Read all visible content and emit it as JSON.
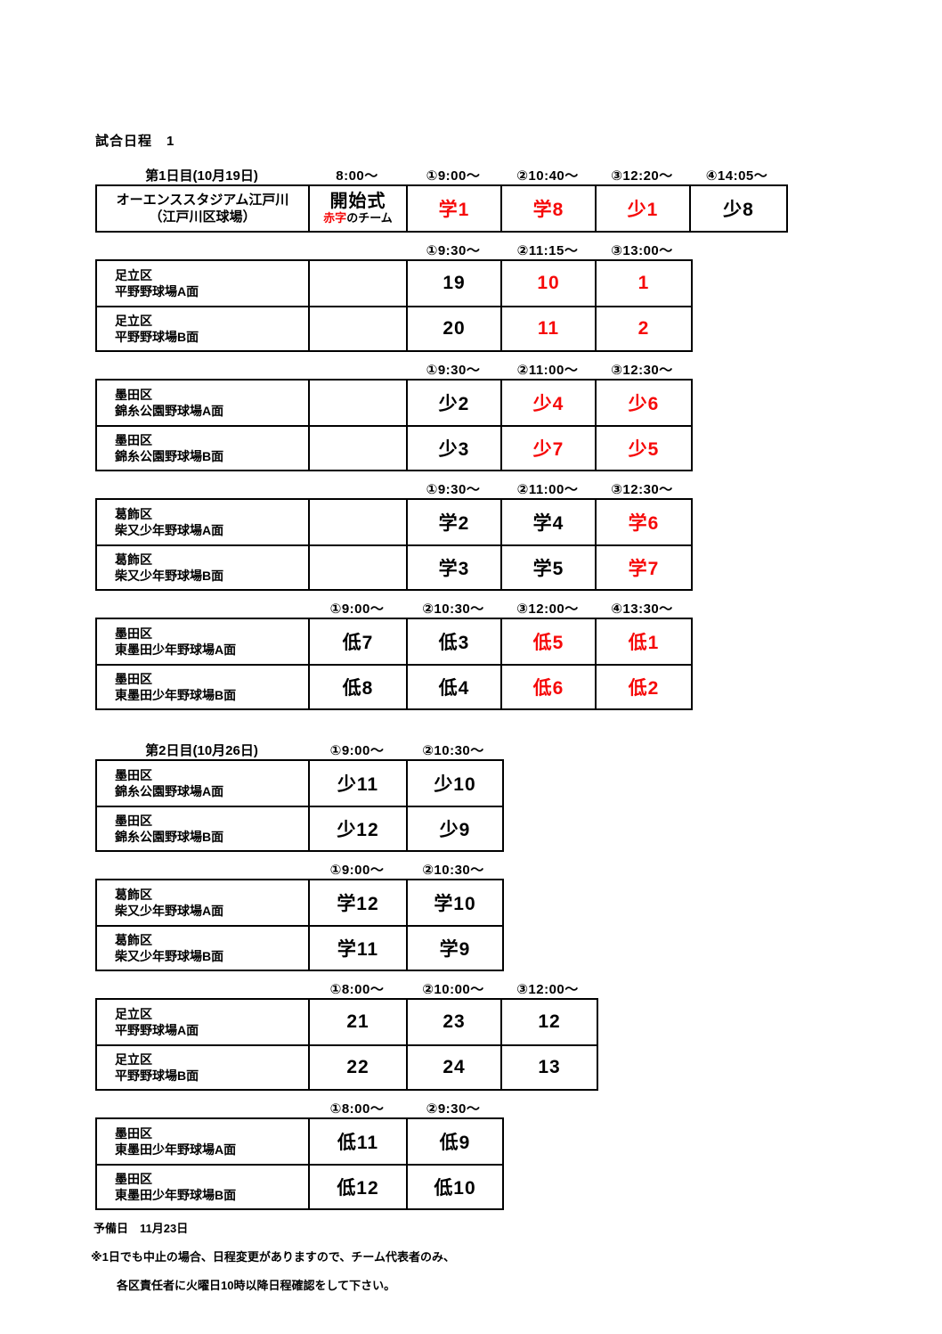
{
  "title": "試合日程　1",
  "colors": {
    "accent_red": "#f60909",
    "text": "#000000",
    "border": "#000000"
  },
  "footer": {
    "reserve": "予備日　11月23日",
    "note1": "※1日でも中止の場合、日程変更がありますので、チーム代表者のみ、",
    "note2": "各区責任者に火曜日10時以降日程確認をして下さい。"
  },
  "sections": [
    {
      "spacing": "first",
      "day_label": "第1日目(10月19日)",
      "cols": 5,
      "times": [
        {
          "col": 1,
          "text": "8:00～"
        },
        {
          "col": 2,
          "text": "①9:00～"
        },
        {
          "col": 3,
          "text": "②10:40～"
        },
        {
          "col": 4,
          "text": "③12:20～"
        },
        {
          "col": 5,
          "text": "④14:05～"
        }
      ],
      "rows": [
        {
          "venue_lines": [
            "オーエンススタジアム江戸川",
            "（江戸川区球場）"
          ],
          "venue_align": "center",
          "cells": [
            {
              "col": 1,
              "type": "ceremony",
              "title": "開始式",
              "red_text": "赤字",
              "rest_text": "のチーム"
            },
            {
              "col": 2,
              "text": "学1",
              "red": true
            },
            {
              "col": 3,
              "text": "学8",
              "red": true
            },
            {
              "col": 4,
              "text": "少1",
              "red": true
            },
            {
              "col": 5,
              "text": "少8",
              "red": false
            }
          ]
        }
      ]
    },
    {
      "spacing": "normal",
      "cols": 4,
      "times": [
        {
          "col": 2,
          "text": "①9:30～"
        },
        {
          "col": 3,
          "text": "②11:15～"
        },
        {
          "col": 4,
          "text": "③13:00～"
        }
      ],
      "rows": [
        {
          "venue_lines": [
            "足立区",
            "平野野球場A面"
          ],
          "cells": [
            {
              "col": 1,
              "text": ""
            },
            {
              "col": 2,
              "text": "19",
              "red": false
            },
            {
              "col": 3,
              "text": "10",
              "red": true
            },
            {
              "col": 4,
              "text": "1",
              "red": true
            }
          ]
        },
        {
          "venue_lines": [
            "足立区",
            "平野野球場B面"
          ],
          "cells": [
            {
              "col": 1,
              "text": ""
            },
            {
              "col": 2,
              "text": "20",
              "red": false
            },
            {
              "col": 3,
              "text": "11",
              "red": true
            },
            {
              "col": 4,
              "text": "2",
              "red": true
            }
          ]
        }
      ]
    },
    {
      "spacing": "normal",
      "cols": 4,
      "times": [
        {
          "col": 2,
          "text": "①9:30～"
        },
        {
          "col": 3,
          "text": "②11:00～"
        },
        {
          "col": 4,
          "text": "③12:30～"
        }
      ],
      "rows": [
        {
          "venue_lines": [
            "墨田区",
            "錦糸公園野球場A面"
          ],
          "cells": [
            {
              "col": 1,
              "text": ""
            },
            {
              "col": 2,
              "text": "少2",
              "red": false
            },
            {
              "col": 3,
              "text": "少4",
              "red": true
            },
            {
              "col": 4,
              "text": "少6",
              "red": true
            }
          ]
        },
        {
          "venue_lines": [
            "墨田区",
            "錦糸公園野球場B面"
          ],
          "cells": [
            {
              "col": 1,
              "text": ""
            },
            {
              "col": 2,
              "text": "少3",
              "red": false
            },
            {
              "col": 3,
              "text": "少7",
              "red": true
            },
            {
              "col": 4,
              "text": "少5",
              "red": true
            }
          ]
        }
      ]
    },
    {
      "spacing": "normal",
      "cols": 4,
      "times": [
        {
          "col": 2,
          "text": "①9:30～"
        },
        {
          "col": 3,
          "text": "②11:00～"
        },
        {
          "col": 4,
          "text": "③12:30～"
        }
      ],
      "rows": [
        {
          "venue_lines": [
            "葛飾区",
            "柴又少年野球場A面"
          ],
          "cells": [
            {
              "col": 1,
              "text": ""
            },
            {
              "col": 2,
              "text": "学2",
              "red": false
            },
            {
              "col": 3,
              "text": "学4",
              "red": false
            },
            {
              "col": 4,
              "text": "学6",
              "red": true
            }
          ]
        },
        {
          "venue_lines": [
            "葛飾区",
            "柴又少年野球場B面"
          ],
          "cells": [
            {
              "col": 1,
              "text": ""
            },
            {
              "col": 2,
              "text": "学3",
              "red": false
            },
            {
              "col": 3,
              "text": "学5",
              "red": false
            },
            {
              "col": 4,
              "text": "学7",
              "red": true
            }
          ]
        }
      ]
    },
    {
      "spacing": "normal",
      "cols": 4,
      "times": [
        {
          "col": 1,
          "text": "①9:00～"
        },
        {
          "col": 2,
          "text": "②10:30～"
        },
        {
          "col": 3,
          "text": "③12:00～"
        },
        {
          "col": 4,
          "text": "④13:30～"
        }
      ],
      "rows": [
        {
          "venue_lines": [
            "墨田区",
            "東墨田少年野球場A面"
          ],
          "cells": [
            {
              "col": 1,
              "text": "低7",
              "red": false
            },
            {
              "col": 2,
              "text": "低3",
              "red": false
            },
            {
              "col": 3,
              "text": "低5",
              "red": true
            },
            {
              "col": 4,
              "text": "低1",
              "red": true
            }
          ]
        },
        {
          "venue_lines": [
            "墨田区",
            "東墨田少年野球場B面"
          ],
          "cells": [
            {
              "col": 1,
              "text": "低8",
              "red": false
            },
            {
              "col": 2,
              "text": "低4",
              "red": false
            },
            {
              "col": 3,
              "text": "低6",
              "red": true
            },
            {
              "col": 4,
              "text": "低2",
              "red": true
            }
          ]
        }
      ]
    },
    {
      "spacing": "day-break",
      "day_label": "第2日目(10月26日)",
      "cols": 2,
      "times": [
        {
          "col": 1,
          "text": "①9:00～"
        },
        {
          "col": 2,
          "text": "②10:30～"
        }
      ],
      "rows": [
        {
          "venue_lines": [
            "墨田区",
            "錦糸公園野球場A面"
          ],
          "cells": [
            {
              "col": 1,
              "text": "少11",
              "red": false
            },
            {
              "col": 2,
              "text": "少10",
              "red": false
            }
          ]
        },
        {
          "venue_lines": [
            "墨田区",
            "錦糸公園野球場B面"
          ],
          "cells": [
            {
              "col": 1,
              "text": "少12",
              "red": false
            },
            {
              "col": 2,
              "text": "少9",
              "red": false
            }
          ]
        }
      ]
    },
    {
      "spacing": "normal",
      "cols": 2,
      "times": [
        {
          "col": 1,
          "text": "①9:00～"
        },
        {
          "col": 2,
          "text": "②10:30～"
        }
      ],
      "rows": [
        {
          "venue_lines": [
            "葛飾区",
            "柴又少年野球場A面"
          ],
          "cells": [
            {
              "col": 1,
              "text": "学12",
              "red": false
            },
            {
              "col": 2,
              "text": "学10",
              "red": false
            }
          ]
        },
        {
          "venue_lines": [
            "葛飾区",
            "柴又少年野球場B面"
          ],
          "cells": [
            {
              "col": 1,
              "text": "学11",
              "red": false
            },
            {
              "col": 2,
              "text": "学9",
              "red": false
            }
          ]
        }
      ]
    },
    {
      "spacing": "normal",
      "cols": 3,
      "times": [
        {
          "col": 1,
          "text": "①8:00～"
        },
        {
          "col": 2,
          "text": "②10:00～"
        },
        {
          "col": 3,
          "text": "③12:00～"
        }
      ],
      "rows": [
        {
          "venue_lines": [
            "足立区",
            "平野野球場A面"
          ],
          "cells": [
            {
              "col": 1,
              "text": "21",
              "red": false
            },
            {
              "col": 2,
              "text": "23",
              "red": false
            },
            {
              "col": 3,
              "text": "12",
              "red": false
            }
          ]
        },
        {
          "venue_lines": [
            "足立区",
            "平野野球場B面"
          ],
          "cells": [
            {
              "col": 1,
              "text": "22",
              "red": false
            },
            {
              "col": 2,
              "text": "24",
              "red": false
            },
            {
              "col": 3,
              "text": "13",
              "red": false
            }
          ]
        }
      ]
    },
    {
      "spacing": "normal",
      "cols": 2,
      "times": [
        {
          "col": 1,
          "text": "①8:00～"
        },
        {
          "col": 2,
          "text": "②9:30～"
        }
      ],
      "rows": [
        {
          "venue_lines": [
            "墨田区",
            "東墨田少年野球場A面"
          ],
          "cells": [
            {
              "col": 1,
              "text": "低11",
              "red": false
            },
            {
              "col": 2,
              "text": "低9",
              "red": false
            }
          ]
        },
        {
          "venue_lines": [
            "墨田区",
            "東墨田少年野球場B面"
          ],
          "cells": [
            {
              "col": 1,
              "text": "低12",
              "red": false
            },
            {
              "col": 2,
              "text": "低10",
              "red": false
            }
          ]
        }
      ]
    }
  ]
}
